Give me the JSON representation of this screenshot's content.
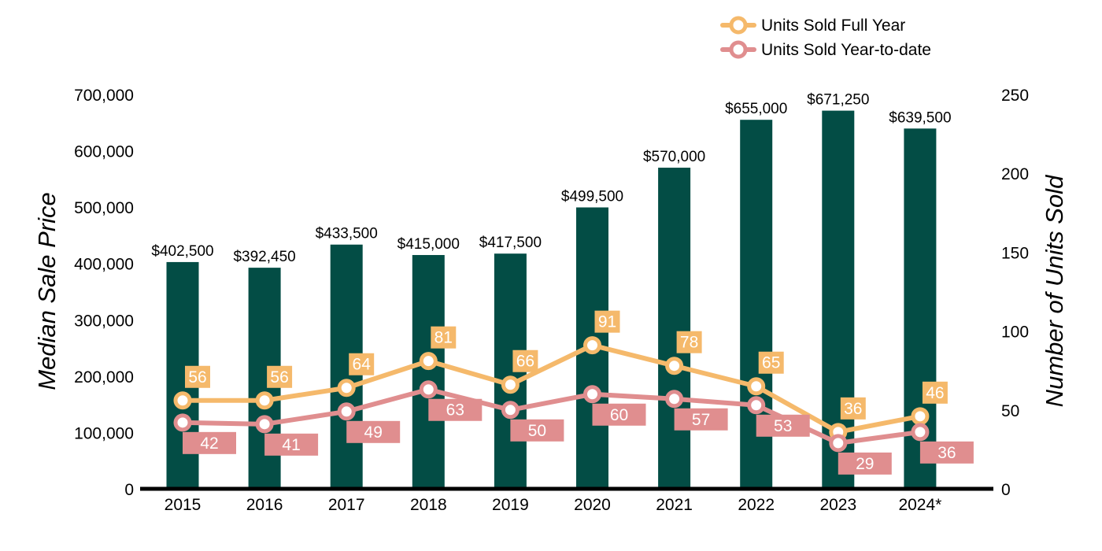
{
  "chart_data": {
    "type": "bar",
    "categories": [
      "2015",
      "2016",
      "2017",
      "2018",
      "2019",
      "2020",
      "2021",
      "2022",
      "2023",
      "2024*"
    ],
    "bars": {
      "values": [
        402500,
        392450,
        433500,
        415000,
        417500,
        499500,
        570000,
        655000,
        671250,
        639500
      ],
      "labels": [
        "$402,500",
        "$392,450",
        "$433,500",
        "$415,000",
        "$417,500",
        "$499,500",
        "$570,000",
        "$655,000",
        "$671,250",
        "$639,500"
      ],
      "color": "#034d45"
    },
    "series": [
      {
        "name": "Units Sold Full Year",
        "type": "line",
        "axis": "right",
        "values": [
          56,
          56,
          64,
          81,
          66,
          91,
          78,
          65,
          36,
          46
        ],
        "color": "#f5b96b"
      },
      {
        "name": "Units Sold Year-to-date",
        "type": "line",
        "axis": "right",
        "values": [
          42,
          41,
          49,
          63,
          50,
          60,
          57,
          53,
          29,
          36
        ],
        "color": "#e08e8f"
      }
    ],
    "ylabel": "Median Sale Price",
    "y2label": "Number of Units Sold",
    "ylim": [
      0,
      700000
    ],
    "y2lim": [
      0,
      250
    ],
    "yticks": [
      "0",
      "100,000",
      "200,000",
      "300,000",
      "400,000",
      "500,000",
      "600,000",
      "700,000"
    ],
    "y2ticks": [
      "0",
      "50",
      "100",
      "150",
      "200",
      "250"
    ],
    "grid": false,
    "legend_position": "top-right"
  }
}
